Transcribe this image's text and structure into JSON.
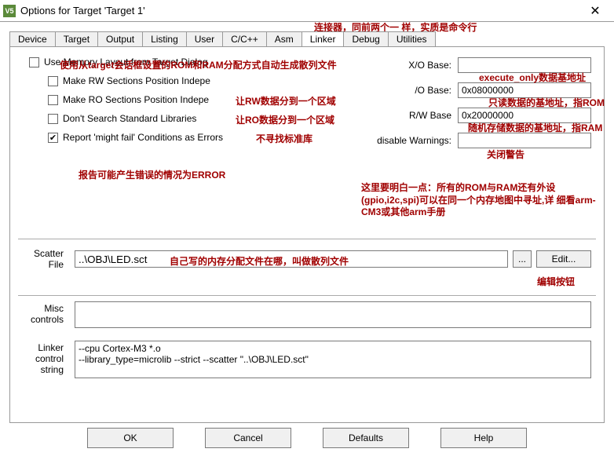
{
  "window": {
    "title": "Options for Target 'Target 1'",
    "icon_text": "V5"
  },
  "tabs": [
    {
      "label": "Device"
    },
    {
      "label": "Target"
    },
    {
      "label": "Output"
    },
    {
      "label": "Listing"
    },
    {
      "label": "User"
    },
    {
      "label": "C/C++"
    },
    {
      "label": "Asm"
    },
    {
      "label": "Linker",
      "active": true
    },
    {
      "label": "Debug"
    },
    {
      "label": "Utilities"
    }
  ],
  "linker": {
    "use_mem_layout": {
      "label": "Use Memory Layout from Target Dialog",
      "checked": false
    },
    "make_rw_pi": {
      "label": "Make RW Sections Position Indepe",
      "checked": false
    },
    "make_ro_pi": {
      "label": "Make RO Sections Position Indepe",
      "checked": false
    },
    "dont_search": {
      "label": "Don't Search Standard Libraries",
      "checked": false
    },
    "report_might_fail": {
      "label": "Report 'might fail' Conditions as Errors",
      "checked": true
    },
    "xo_base": {
      "label": "X/O Base:",
      "value": ""
    },
    "ro_base": {
      "label": "/O Base:",
      "value": "0x08000000"
    },
    "rw_base": {
      "label": "R/W Base",
      "value": "0x20000000"
    },
    "disable_warnings": {
      "label": "disable Warnings:",
      "value": ""
    },
    "scatter": {
      "label": "Scatter\nFile",
      "value": "..\\OBJ\\LED.sct",
      "browse": "...",
      "edit": "Edit..."
    },
    "misc": {
      "label": "Misc\ncontrols",
      "value": ""
    },
    "ctrl_string": {
      "label": "Linker\ncontrol\nstring",
      "value": "--cpu Cortex-M3 *.o\n--library_type=microlib --strict --scatter \"..\\OBJ\\LED.sct\""
    }
  },
  "buttons": {
    "ok": "OK",
    "cancel": "Cancel",
    "defaults": "Defaults",
    "help": "Help"
  },
  "annotations": {
    "a1": "连接器，同前两个一\n样，实质是命令行",
    "a2": "使用从target会话框设置的ROM和RAM分配方式自动生成散列文件",
    "a3": "execute_only数据基地址",
    "a4": "让RW数据分到一个区域",
    "a5": "只读数据的基地址，指ROM",
    "a6": "让RO数据分到一个区域",
    "a7": "随机存储数据的基地址，指RAM",
    "a8": "不寻找标准库",
    "a9": "关闭警告",
    "a10": "报告可能产生错误的情况为ERROR",
    "a11": "这里要明白一点：所有的ROM与RAM还有外设\n(gpio,i2c,spi)可以在同一个内存地图中寻址,详\n细看arm-CM3或其他arm手册",
    "a12": "自己写的内存分配文件在哪，叫做散列文件",
    "a13": "编辑按钮"
  }
}
